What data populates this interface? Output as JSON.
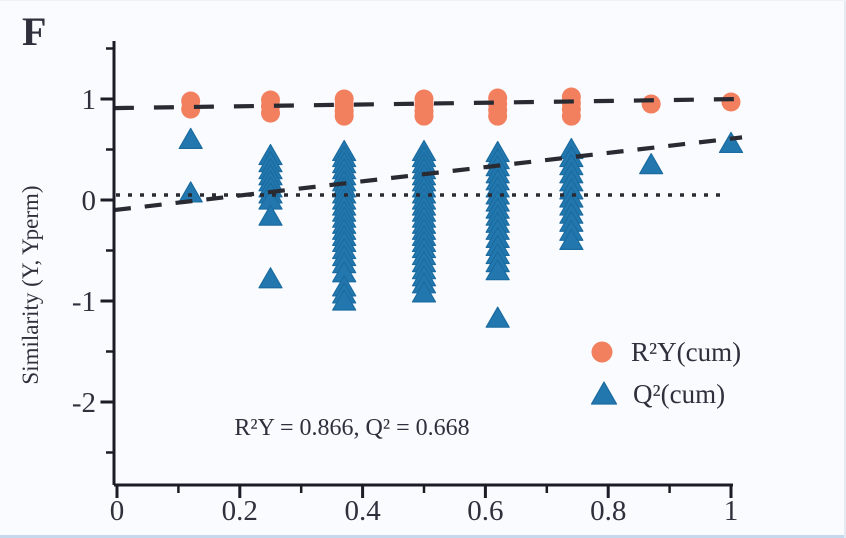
{
  "panel_label": "F",
  "colors": {
    "background": "#fafbfe",
    "axis": "#1c1c26",
    "text": "#30303d",
    "trend_line": "#2a2a33",
    "r2y_marker": "#f2805f",
    "q2_marker": "#2278ae",
    "q2_marker_edge": "#1a6ba0"
  },
  "chart_data": {
    "type": "scatter",
    "title": "",
    "xlabel": "",
    "ylabel": "Similarity (Y, Yperm)",
    "xlim": [
      0,
      1
    ],
    "ylim": [
      -2.8,
      1.55
    ],
    "grid": false,
    "legend_position": "lower right",
    "annotation": "R²Y = 0.866, Q² = 0.668",
    "model_values": {
      "R2Y": 0.866,
      "Q2": 0.668
    },
    "x_tick_labels": [
      "0",
      "0.2",
      "0.4",
      "0.6",
      "0.8",
      "1"
    ],
    "x_ticks_major": [
      0,
      0.2,
      0.4,
      0.6,
      0.8,
      1
    ],
    "x_ticks_minor": [
      0.1,
      0.3,
      0.5,
      0.7,
      0.9
    ],
    "y_tick_labels": [
      "1",
      "0",
      "-1",
      "-2"
    ],
    "y_ticks_major": [
      1,
      0,
      -1,
      -2
    ],
    "y_ticks_minor": [
      1.5,
      0.5,
      -0.5,
      -1.5,
      -2.5
    ],
    "zero_reference_line_y": 0.05,
    "series": [
      {
        "name": "R²Y(cum)",
        "marker": "circle",
        "color": "#f2805f",
        "trend": {
          "x": [
            -0.005,
            1.018
          ],
          "y": [
            0.91,
            1.0
          ]
        },
        "points": [
          [
            0.12,
            0.98
          ],
          [
            0.12,
            0.9
          ],
          [
            0.25,
            0.99
          ],
          [
            0.25,
            0.93
          ],
          [
            0.25,
            0.86
          ],
          [
            0.37,
            1.0
          ],
          [
            0.37,
            0.94
          ],
          [
            0.37,
            0.88
          ],
          [
            0.37,
            0.83
          ],
          [
            0.5,
            1.0
          ],
          [
            0.5,
            0.94
          ],
          [
            0.5,
            0.88
          ],
          [
            0.5,
            0.83
          ],
          [
            0.62,
            1.01
          ],
          [
            0.62,
            0.95
          ],
          [
            0.62,
            0.89
          ],
          [
            0.62,
            0.83
          ],
          [
            0.74,
            1.02
          ],
          [
            0.74,
            0.96
          ],
          [
            0.74,
            0.9
          ],
          [
            0.74,
            0.83
          ],
          [
            0.87,
            0.95
          ],
          [
            1.0,
            0.97
          ]
        ]
      },
      {
        "name": "Q²(cum)",
        "marker": "triangle",
        "color": "#2278ae",
        "trend": {
          "x": [
            -0.005,
            1.018
          ],
          "y": [
            -0.1,
            0.62
          ]
        },
        "points": [
          [
            0.12,
            0.6
          ],
          [
            0.12,
            0.07
          ],
          [
            0.25,
            0.44
          ],
          [
            0.25,
            0.37
          ],
          [
            0.25,
            0.3
          ],
          [
            0.25,
            0.24
          ],
          [
            0.25,
            0.18
          ],
          [
            0.25,
            0.12
          ],
          [
            0.25,
            0.06
          ],
          [
            0.25,
            0.0
          ],
          [
            0.25,
            -0.16
          ],
          [
            0.25,
            -0.78
          ],
          [
            0.37,
            0.48
          ],
          [
            0.37,
            0.42
          ],
          [
            0.37,
            0.36
          ],
          [
            0.37,
            0.3
          ],
          [
            0.37,
            0.24
          ],
          [
            0.37,
            0.18
          ],
          [
            0.37,
            0.12
          ],
          [
            0.37,
            0.06
          ],
          [
            0.37,
            0.0
          ],
          [
            0.37,
            -0.06
          ],
          [
            0.37,
            -0.12
          ],
          [
            0.37,
            -0.18
          ],
          [
            0.37,
            -0.24
          ],
          [
            0.37,
            -0.3
          ],
          [
            0.37,
            -0.36
          ],
          [
            0.37,
            -0.42
          ],
          [
            0.37,
            -0.49
          ],
          [
            0.37,
            -0.56
          ],
          [
            0.37,
            -0.63
          ],
          [
            0.37,
            -0.72
          ],
          [
            0.37,
            -0.86
          ],
          [
            0.37,
            -0.93
          ],
          [
            0.37,
            -1.0
          ],
          [
            0.5,
            0.48
          ],
          [
            0.5,
            0.42
          ],
          [
            0.5,
            0.36
          ],
          [
            0.5,
            0.3
          ],
          [
            0.5,
            0.24
          ],
          [
            0.5,
            0.18
          ],
          [
            0.5,
            0.12
          ],
          [
            0.5,
            0.06
          ],
          [
            0.5,
            0.0
          ],
          [
            0.5,
            -0.06
          ],
          [
            0.5,
            -0.12
          ],
          [
            0.5,
            -0.18
          ],
          [
            0.5,
            -0.24
          ],
          [
            0.5,
            -0.3
          ],
          [
            0.5,
            -0.36
          ],
          [
            0.5,
            -0.42
          ],
          [
            0.5,
            -0.48
          ],
          [
            0.5,
            -0.55
          ],
          [
            0.5,
            -0.62
          ],
          [
            0.5,
            -0.69
          ],
          [
            0.5,
            -0.76
          ],
          [
            0.5,
            -0.83
          ],
          [
            0.5,
            -0.92
          ],
          [
            0.62,
            0.47
          ],
          [
            0.62,
            0.4
          ],
          [
            0.62,
            0.33
          ],
          [
            0.62,
            0.26
          ],
          [
            0.62,
            0.19
          ],
          [
            0.62,
            0.12
          ],
          [
            0.62,
            0.05
          ],
          [
            0.62,
            -0.02
          ],
          [
            0.62,
            -0.09
          ],
          [
            0.62,
            -0.16
          ],
          [
            0.62,
            -0.23
          ],
          [
            0.62,
            -0.3
          ],
          [
            0.62,
            -0.38
          ],
          [
            0.62,
            -0.46
          ],
          [
            0.62,
            -0.54
          ],
          [
            0.62,
            -0.62
          ],
          [
            0.62,
            -0.7
          ],
          [
            0.62,
            -1.17
          ],
          [
            0.74,
            0.5
          ],
          [
            0.74,
            0.42
          ],
          [
            0.74,
            0.34
          ],
          [
            0.74,
            0.26
          ],
          [
            0.74,
            0.18
          ],
          [
            0.74,
            0.1
          ],
          [
            0.74,
            0.02
          ],
          [
            0.74,
            -0.06
          ],
          [
            0.74,
            -0.14
          ],
          [
            0.74,
            -0.22
          ],
          [
            0.74,
            -0.31
          ],
          [
            0.74,
            -0.4
          ],
          [
            0.87,
            0.35
          ],
          [
            1.0,
            0.56
          ]
        ]
      }
    ]
  }
}
